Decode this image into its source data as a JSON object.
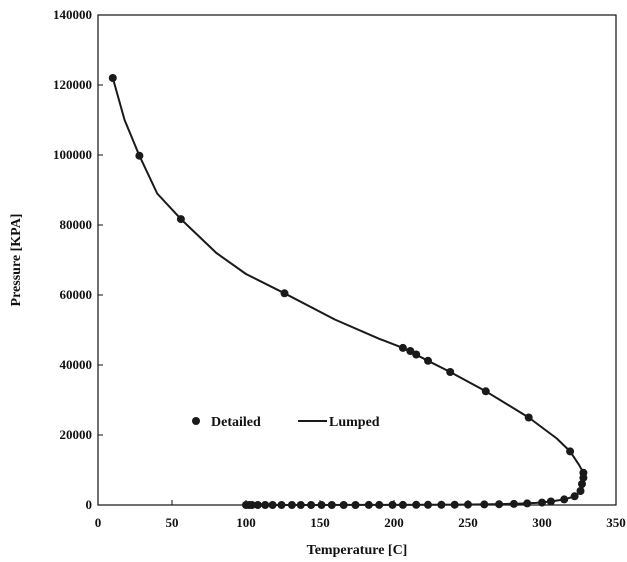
{
  "chart_data": {
    "type": "scatter",
    "xlabel": "Temperature [C]",
    "ylabel": "Pressure [KPA]",
    "xlim": [
      0,
      350
    ],
    "ylim": [
      0,
      140000
    ],
    "x_ticks": [
      "0",
      "50",
      "100",
      "150",
      "200",
      "250",
      "300",
      "350"
    ],
    "y_ticks": [
      "0",
      "20000",
      "40000",
      "60000",
      "80000",
      "100000",
      "120000",
      "140000"
    ],
    "grid": false,
    "legend_position": "center-left",
    "series": [
      {
        "name": "Detailed",
        "style": "markers",
        "color": "#1a1a1a",
        "x": [
          10,
          28,
          56,
          126,
          206,
          211,
          215,
          223,
          238,
          262,
          291,
          319,
          328,
          328,
          327,
          326,
          322,
          315,
          306,
          300,
          290,
          281,
          271,
          261,
          250,
          241,
          232,
          223,
          215,
          206,
          199,
          190,
          183,
          174,
          166,
          158,
          151,
          144,
          137,
          131,
          124,
          118,
          113,
          108,
          104,
          102,
          100
        ],
        "y": [
          122000,
          99800,
          81700,
          60500,
          44900,
          44000,
          43000,
          41200,
          38000,
          32500,
          25000,
          15300,
          9200,
          7800,
          6000,
          4000,
          2500,
          1600,
          1000,
          700,
          450,
          300,
          220,
          160,
          120,
          90,
          70,
          55,
          45,
          35,
          28,
          22,
          18,
          14,
          11,
          9,
          7,
          6,
          5,
          4,
          3,
          2,
          2,
          1,
          1,
          1,
          0
        ]
      },
      {
        "name": "Lumped",
        "style": "line",
        "color": "#1a1a1a",
        "x": [
          10,
          18,
          28,
          40,
          56,
          80,
          100,
          126,
          160,
          190,
          206,
          223,
          238,
          262,
          291,
          310,
          319,
          325,
          328,
          329,
          328,
          327,
          325,
          322,
          315,
          306,
          296,
          285,
          272,
          260,
          245,
          225,
          200,
          175,
          150,
          125,
          110,
          100
        ],
        "y": [
          122000,
          110000,
          99800,
          89000,
          81700,
          72000,
          66000,
          60500,
          53000,
          47500,
          44900,
          41200,
          38000,
          32500,
          25000,
          19000,
          15300,
          11500,
          9200,
          7500,
          6000,
          4500,
          3500,
          2500,
          1600,
          1000,
          600,
          400,
          250,
          160,
          100,
          60,
          35,
          18,
          9,
          4,
          2,
          0
        ]
      }
    ]
  }
}
